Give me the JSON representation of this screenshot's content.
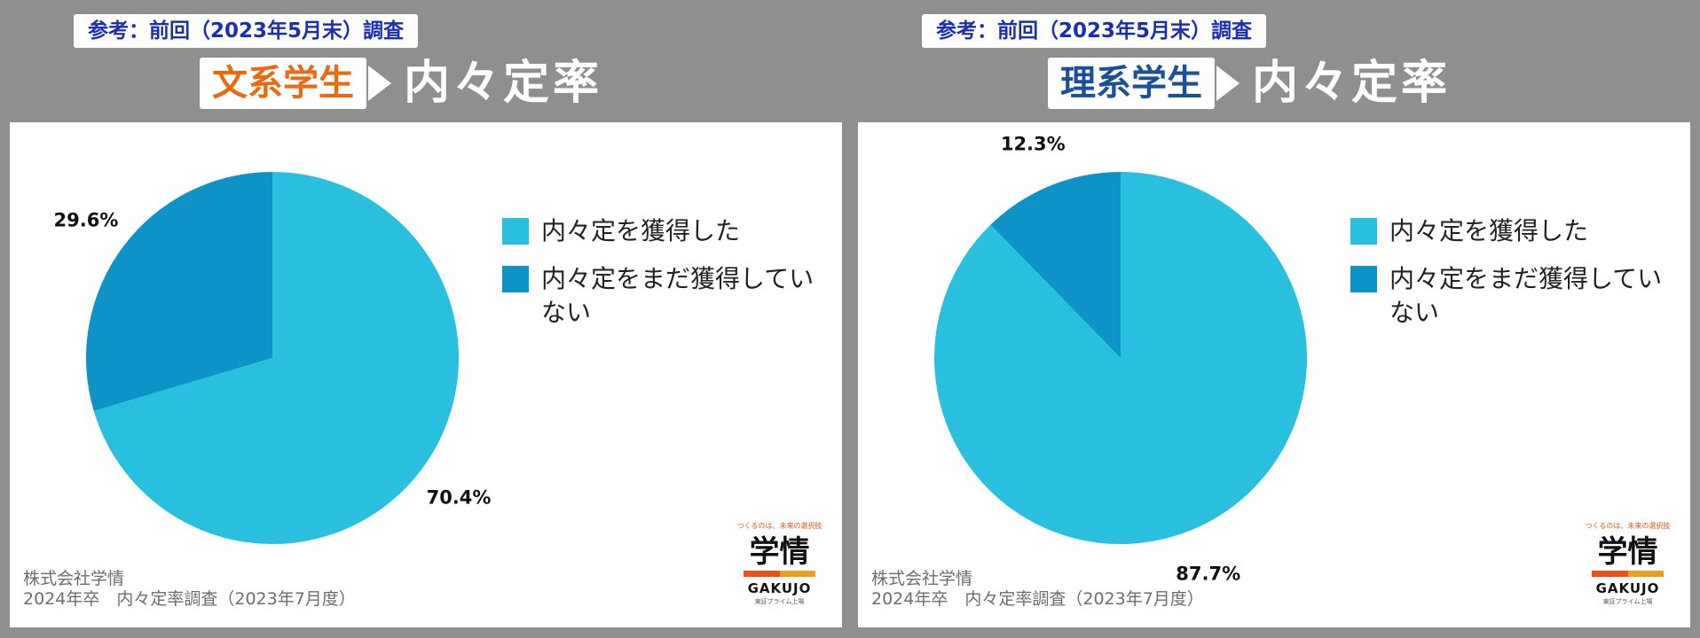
{
  "colors": {
    "acquired": "#29c0e0",
    "not_acquired": "#0d93c8",
    "arrow": "#ffffff"
  },
  "panels": [
    {
      "ref_badge": "参考：前回（2023年5月末）調査",
      "major": "文系学生",
      "title": "内々定率",
      "legend": [
        "内々定を獲得した",
        "内々定をまだ獲得していない"
      ],
      "source_line1": "株式会社学情",
      "source_line2": "2024年卒　内々定率調査（2023年7月度）"
    },
    {
      "ref_badge": "参考：前回（2023年5月末）調査",
      "major": "理系学生",
      "title": "内々定率",
      "legend": [
        "内々定を獲得した",
        "内々定をまだ獲得していない"
      ],
      "source_line1": "株式会社学情",
      "source_line2": "2024年卒　内々定率調査（2023年7月度）"
    }
  ],
  "logo": {
    "tagline": "つくるのは、未来の選択肢",
    "name": "学情",
    "name_en": "GAKUJO",
    "sub": "東証プライム上場",
    "bar_colors": [
      "#e8501e",
      "#e8a01e"
    ]
  },
  "chart_data": [
    {
      "type": "pie",
      "title": "文系学生 内々定率",
      "categories": [
        "内々定を獲得した",
        "内々定をまだ獲得していない"
      ],
      "values": [
        70.4,
        29.6
      ],
      "value_labels": [
        "70.4%",
        "29.6%"
      ],
      "legend_position": "right"
    },
    {
      "type": "pie",
      "title": "理系学生 内々定率",
      "categories": [
        "内々定を獲得した",
        "内々定をまだ獲得していない"
      ],
      "values": [
        87.7,
        12.3
      ],
      "value_labels": [
        "87.7%",
        "12.3%"
      ],
      "legend_position": "right"
    }
  ]
}
